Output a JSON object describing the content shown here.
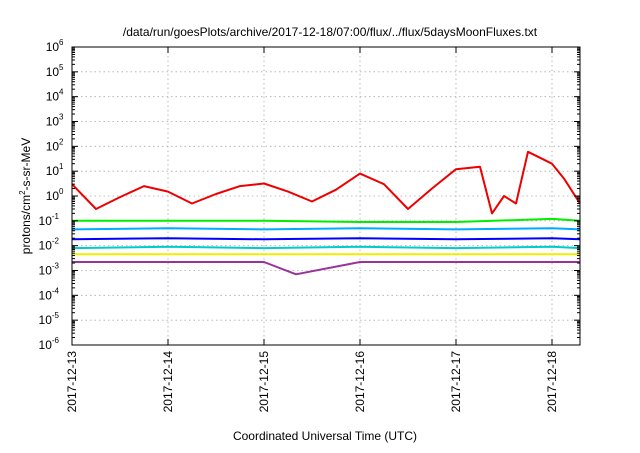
{
  "chart_data": {
    "type": "line",
    "title": "/data/run/goesPlots/archive/2017-12-18/07:00/flux/../flux/5daysMoonFluxes.txt",
    "xlabel": "Coordinated Universal Time (UTC)",
    "ylabel_parts": {
      "base": "protons/cm",
      "sup": "2",
      "rest": "-s-sr-MeV"
    },
    "yscale": "log",
    "ylim_exponents": [
      -6,
      6
    ],
    "y_tick_labels": [
      {
        "base": "10",
        "exp": "-6"
      },
      {
        "base": "10",
        "exp": "-5"
      },
      {
        "base": "10",
        "exp": "-4"
      },
      {
        "base": "10",
        "exp": "-3"
      },
      {
        "base": "10",
        "exp": "-2"
      },
      {
        "base": "10",
        "exp": "-1"
      },
      {
        "base": "10",
        "exp": "0"
      },
      {
        "base": "10",
        "exp": "1"
      },
      {
        "base": "10",
        "exp": "2"
      },
      {
        "base": "10",
        "exp": "3"
      },
      {
        "base": "10",
        "exp": "4"
      },
      {
        "base": "10",
        "exp": "5"
      },
      {
        "base": "10",
        "exp": "6"
      }
    ],
    "x_tick_labels": [
      "2017-12-13",
      "2017-12-14",
      "2017-12-15",
      "2017-12-16",
      "2017-12-17",
      "2017-12-18"
    ],
    "xlim": [
      "2017-12-13 00:00",
      "2017-12-18 07:00"
    ],
    "grid": true,
    "series": [
      {
        "color": "#ee0000",
        "x": [
          "2017-12-13 00:00",
          "2017-12-13 06:00",
          "2017-12-13 12:00",
          "2017-12-13 18:00",
          "2017-12-14 00:00",
          "2017-12-14 06:00",
          "2017-12-14 12:00",
          "2017-12-14 18:00",
          "2017-12-15 00:00",
          "2017-12-15 06:00",
          "2017-12-15 12:00",
          "2017-12-15 18:00",
          "2017-12-16 00:00",
          "2017-12-16 06:00",
          "2017-12-16 12:00",
          "2017-12-16 18:00",
          "2017-12-17 00:00",
          "2017-12-17 06:00",
          "2017-12-17 09:00",
          "2017-12-17 12:00",
          "2017-12-17 15:00",
          "2017-12-17 18:00",
          "2017-12-18 00:00",
          "2017-12-18 03:00",
          "2017-12-18 07:00"
        ],
        "y": [
          3.0,
          0.3,
          0.9,
          2.5,
          1.5,
          0.5,
          1.2,
          2.5,
          3.2,
          1.5,
          0.6,
          1.8,
          8.0,
          3.0,
          0.3,
          2.0,
          12.0,
          15.0,
          0.2,
          1.0,
          0.5,
          60.0,
          20.0,
          5.0,
          0.5
        ]
      },
      {
        "color": "#00ee00",
        "x": [
          "2017-12-13 00:00",
          "2017-12-14 00:00",
          "2017-12-15 00:00",
          "2017-12-16 00:00",
          "2017-12-17 00:00",
          "2017-12-18 00:00",
          "2017-12-18 07:00"
        ],
        "y": [
          0.1,
          0.1,
          0.1,
          0.09,
          0.09,
          0.12,
          0.1
        ]
      },
      {
        "color": "#00aaff",
        "x": [
          "2017-12-13 00:00",
          "2017-12-14 00:00",
          "2017-12-15 00:00",
          "2017-12-16 00:00",
          "2017-12-17 00:00",
          "2017-12-18 00:00",
          "2017-12-18 07:00"
        ],
        "y": [
          0.045,
          0.05,
          0.045,
          0.05,
          0.045,
          0.05,
          0.045
        ]
      },
      {
        "color": "#0000ff",
        "x": [
          "2017-12-13 00:00",
          "2017-12-14 00:00",
          "2017-12-15 00:00",
          "2017-12-16 00:00",
          "2017-12-17 00:00",
          "2017-12-18 00:00",
          "2017-12-18 07:00"
        ],
        "y": [
          0.018,
          0.02,
          0.018,
          0.02,
          0.018,
          0.02,
          0.018
        ]
      },
      {
        "color": "#00cccc",
        "x": [
          "2017-12-13 00:00",
          "2017-12-14 00:00",
          "2017-12-15 00:00",
          "2017-12-16 00:00",
          "2017-12-17 00:00",
          "2017-12-18 00:00",
          "2017-12-18 07:00"
        ],
        "y": [
          0.008,
          0.009,
          0.008,
          0.009,
          0.008,
          0.009,
          0.008
        ]
      },
      {
        "color": "#eeee00",
        "x": [
          "2017-12-13 00:00",
          "2017-12-14 00:00",
          "2017-12-15 00:00",
          "2017-12-16 00:00",
          "2017-12-17 00:00",
          "2017-12-18 00:00",
          "2017-12-18 07:00"
        ],
        "y": [
          0.0045,
          0.0045,
          0.0045,
          0.0045,
          0.0045,
          0.0045,
          0.0045
        ]
      },
      {
        "color": "#993399",
        "x": [
          "2017-12-13 00:00",
          "2017-12-14 00:00",
          "2017-12-15 00:00",
          "2017-12-15 08:00",
          "2017-12-16 00:00",
          "2017-12-17 00:00",
          "2017-12-18 00:00",
          "2017-12-18 07:00"
        ],
        "y": [
          0.0022,
          0.0022,
          0.0022,
          0.0007,
          0.0022,
          0.0022,
          0.0022,
          0.0022
        ]
      }
    ]
  }
}
